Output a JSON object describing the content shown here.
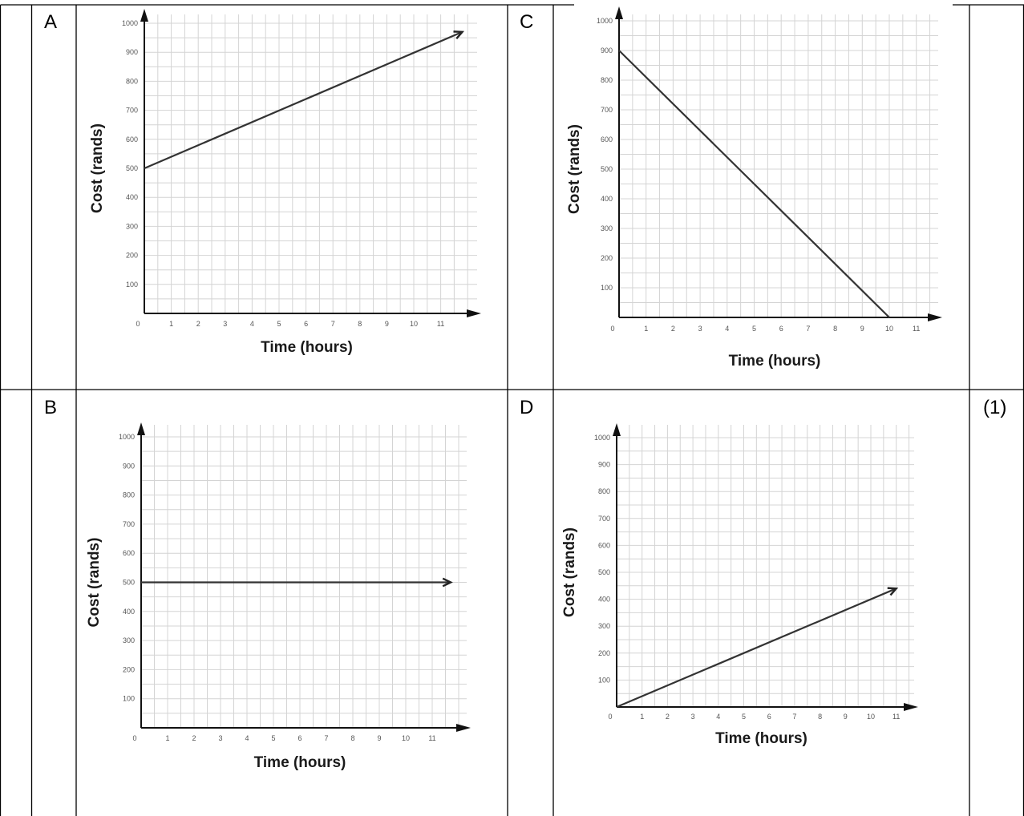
{
  "table": {
    "marks_label": "(1)"
  },
  "arrow_color": "#111111",
  "chart_data": [
    {
      "option": "A",
      "type": "line",
      "xlabel": "Time (hours)",
      "ylabel": "Cost (rands)",
      "xlim": [
        0,
        11
      ],
      "ylim": [
        0,
        1000
      ],
      "x_ticks": [
        0,
        1,
        2,
        3,
        4,
        5,
        6,
        7,
        8,
        9,
        10,
        11
      ],
      "y_ticks": [
        100,
        200,
        300,
        400,
        500,
        600,
        700,
        800,
        900,
        1000
      ],
      "grid": true,
      "series": [
        {
          "x": [
            0,
            11.8
          ],
          "y": [
            500,
            970
          ],
          "arrow_end": true
        }
      ]
    },
    {
      "option": "C",
      "type": "line",
      "xlabel": "Time (hours)",
      "ylabel": "Cost (rands)",
      "xlim": [
        0,
        11
      ],
      "ylim": [
        0,
        1000
      ],
      "x_ticks": [
        0,
        1,
        2,
        3,
        4,
        5,
        6,
        7,
        8,
        9,
        10,
        11
      ],
      "y_ticks": [
        100,
        200,
        300,
        400,
        500,
        600,
        700,
        800,
        900,
        1000
      ],
      "grid": true,
      "series": [
        {
          "x": [
            0,
            10
          ],
          "y": [
            900,
            0
          ],
          "arrow_end": false
        }
      ]
    },
    {
      "option": "B",
      "type": "line",
      "xlabel": "Time (hours)",
      "ylabel": "Cost (rands)",
      "xlim": [
        0,
        11
      ],
      "ylim": [
        0,
        1000
      ],
      "x_ticks": [
        0,
        1,
        2,
        3,
        4,
        5,
        6,
        7,
        8,
        9,
        10,
        11
      ],
      "y_ticks": [
        100,
        200,
        300,
        400,
        500,
        600,
        700,
        800,
        900,
        1000
      ],
      "grid": true,
      "series": [
        {
          "x": [
            0,
            11.7
          ],
          "y": [
            500,
            500
          ],
          "arrow_end": true
        }
      ]
    },
    {
      "option": "D",
      "type": "line",
      "xlabel": "Time (hours)",
      "ylabel": "Cost (rands)",
      "xlim": [
        0,
        11
      ],
      "ylim": [
        0,
        1000
      ],
      "x_ticks": [
        0,
        1,
        2,
        3,
        4,
        5,
        6,
        7,
        8,
        9,
        10,
        11
      ],
      "y_ticks": [
        100,
        200,
        300,
        400,
        500,
        600,
        700,
        800,
        900,
        1000
      ],
      "grid": true,
      "series": [
        {
          "x": [
            0,
            11
          ],
          "y": [
            0,
            440
          ],
          "arrow_end": true
        }
      ]
    }
  ]
}
